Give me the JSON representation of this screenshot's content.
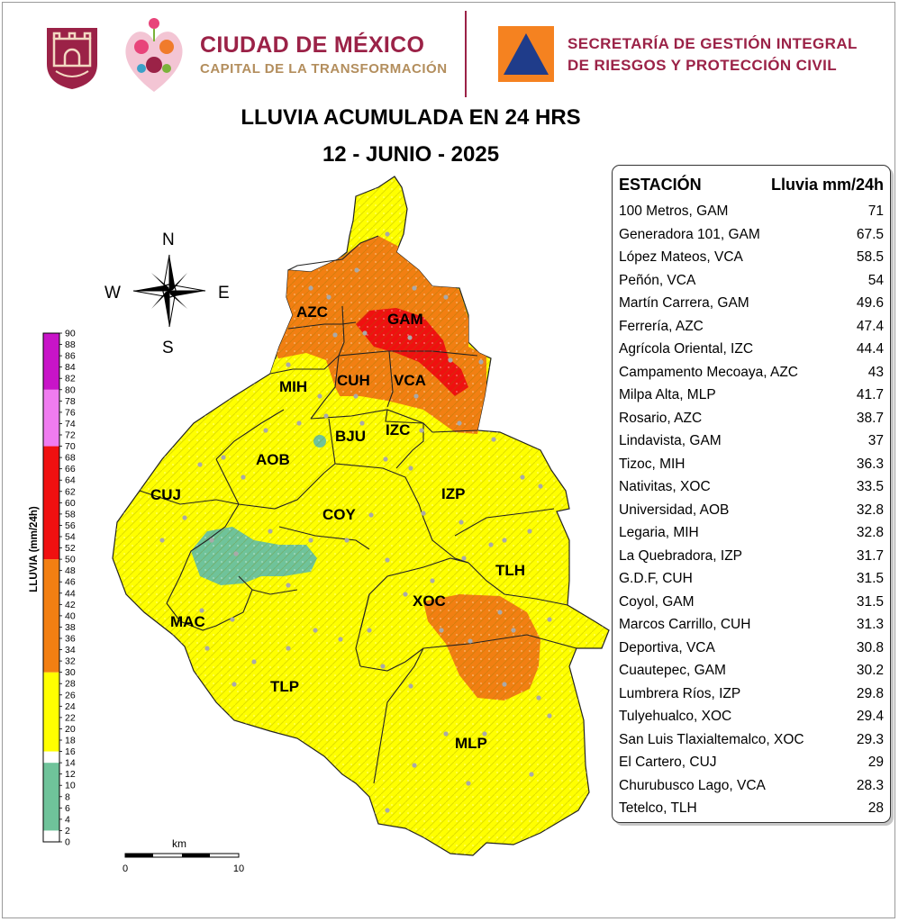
{
  "header": {
    "city_name": "CIUDAD DE MÉXICO",
    "city_tagline": "CAPITAL DE LA TRANSFORMACIÓN",
    "secretariat_line1": "SECRETARÍA DE GESTIÓN INTEGRAL",
    "secretariat_line2": "DE RIESGOS Y PROTECCIÓN CIVIL",
    "brand_color": "#9b2247",
    "gold_color": "#b38e5d",
    "pc_orange": "#f58220",
    "pc_blue": "#1f3c8a"
  },
  "title": {
    "line1": "LLUVIA ACUMULADA EN 24 HRS",
    "line2": "12 - JUNIO - 2025"
  },
  "compass": {
    "n": "N",
    "s": "S",
    "e": "E",
    "w": "W"
  },
  "legend": {
    "label": "LLUVIA (mm/24h)",
    "min": 0,
    "max": 90,
    "ticks": [
      "0",
      "2",
      "4",
      "6",
      "8",
      "10",
      "12",
      "14",
      "16",
      "18",
      "20",
      "22",
      "24",
      "26",
      "28",
      "30",
      "32",
      "34",
      "36",
      "38",
      "40",
      "42",
      "44",
      "46",
      "48",
      "50",
      "52",
      "54",
      "56",
      "58",
      "60",
      "62",
      "64",
      "66",
      "68",
      "70",
      "72",
      "74",
      "76",
      "78",
      "80",
      "82",
      "84",
      "86",
      "88",
      "90"
    ],
    "bands": [
      {
        "from": 0,
        "to": 2,
        "color": "#ffffff"
      },
      {
        "from": 2,
        "to": 14,
        "color": "#6fc39a"
      },
      {
        "from": 14,
        "to": 16,
        "color": "#ffffff"
      },
      {
        "from": 16,
        "to": 30,
        "color": "#ffff00"
      },
      {
        "from": 30,
        "to": 50,
        "color": "#f27f12"
      },
      {
        "from": 50,
        "to": 70,
        "color": "#f01010"
      },
      {
        "from": 70,
        "to": 80,
        "color": "#f07cf0"
      },
      {
        "from": 80,
        "to": 90,
        "color": "#c814c8"
      }
    ]
  },
  "scale_bar": {
    "unit": "km",
    "start": "0",
    "end": "10"
  },
  "boroughs": [
    {
      "code": "AZC"
    },
    {
      "code": "GAM"
    },
    {
      "code": "MIH"
    },
    {
      "code": "CUH"
    },
    {
      "code": "VCA"
    },
    {
      "code": "BJU"
    },
    {
      "code": "IZC"
    },
    {
      "code": "AOB"
    },
    {
      "code": "CUJ"
    },
    {
      "code": "COY"
    },
    {
      "code": "IZP"
    },
    {
      "code": "TLH"
    },
    {
      "code": "XOC"
    },
    {
      "code": "MAC"
    },
    {
      "code": "TLP"
    },
    {
      "code": "MLP"
    }
  ],
  "table": {
    "col_station": "ESTACIÓN",
    "col_rain": "Lluvia mm/24h",
    "rows": [
      {
        "station": "100 Metros, GAM",
        "rain": "71"
      },
      {
        "station": "Generadora 101, GAM",
        "rain": "67.5"
      },
      {
        "station": "López Mateos, VCA",
        "rain": "58.5"
      },
      {
        "station": "Peñón, VCA",
        "rain": "54"
      },
      {
        "station": "Martín Carrera, GAM",
        "rain": "49.6"
      },
      {
        "station": "Ferrería, AZC",
        "rain": "47.4"
      },
      {
        "station": "Agrícola Oriental, IZC",
        "rain": "44.4"
      },
      {
        "station": "Campamento Mecoaya, AZC",
        "rain": "43"
      },
      {
        "station": "Milpa Alta, MLP",
        "rain": "41.7"
      },
      {
        "station": "Rosario, AZC",
        "rain": "38.7"
      },
      {
        "station": "Lindavista, GAM",
        "rain": "37"
      },
      {
        "station": "Tizoc, MIH",
        "rain": "36.3"
      },
      {
        "station": "Nativitas, XOC",
        "rain": "33.5"
      },
      {
        "station": "Universidad, AOB",
        "rain": "32.8"
      },
      {
        "station": "Legaria, MIH",
        "rain": "32.8"
      },
      {
        "station": "La Quebradora, IZP",
        "rain": "31.7"
      },
      {
        "station": "G.D.F, CUH",
        "rain": "31.5"
      },
      {
        "station": "Coyol, GAM",
        "rain": "31.5"
      },
      {
        "station": "Marcos Carrillo, CUH",
        "rain": "31.3"
      },
      {
        "station": "Deportiva, VCA",
        "rain": "30.8"
      },
      {
        "station": "Cuautepec, GAM",
        "rain": "30.2"
      },
      {
        "station": "Lumbrera Ríos, IZP",
        "rain": "29.8"
      },
      {
        "station": "Tulyehualco, XOC",
        "rain": "29.4"
      },
      {
        "station": "San Luis Tlaxialtemalco, XOC",
        "rain": "29.3"
      },
      {
        "station": "El Cartero, CUJ",
        "rain": "29"
      },
      {
        "station": "Churubusco Lago, VCA",
        "rain": "28.3"
      },
      {
        "station": "Tetelco, TLH",
        "rain": "28"
      }
    ]
  }
}
